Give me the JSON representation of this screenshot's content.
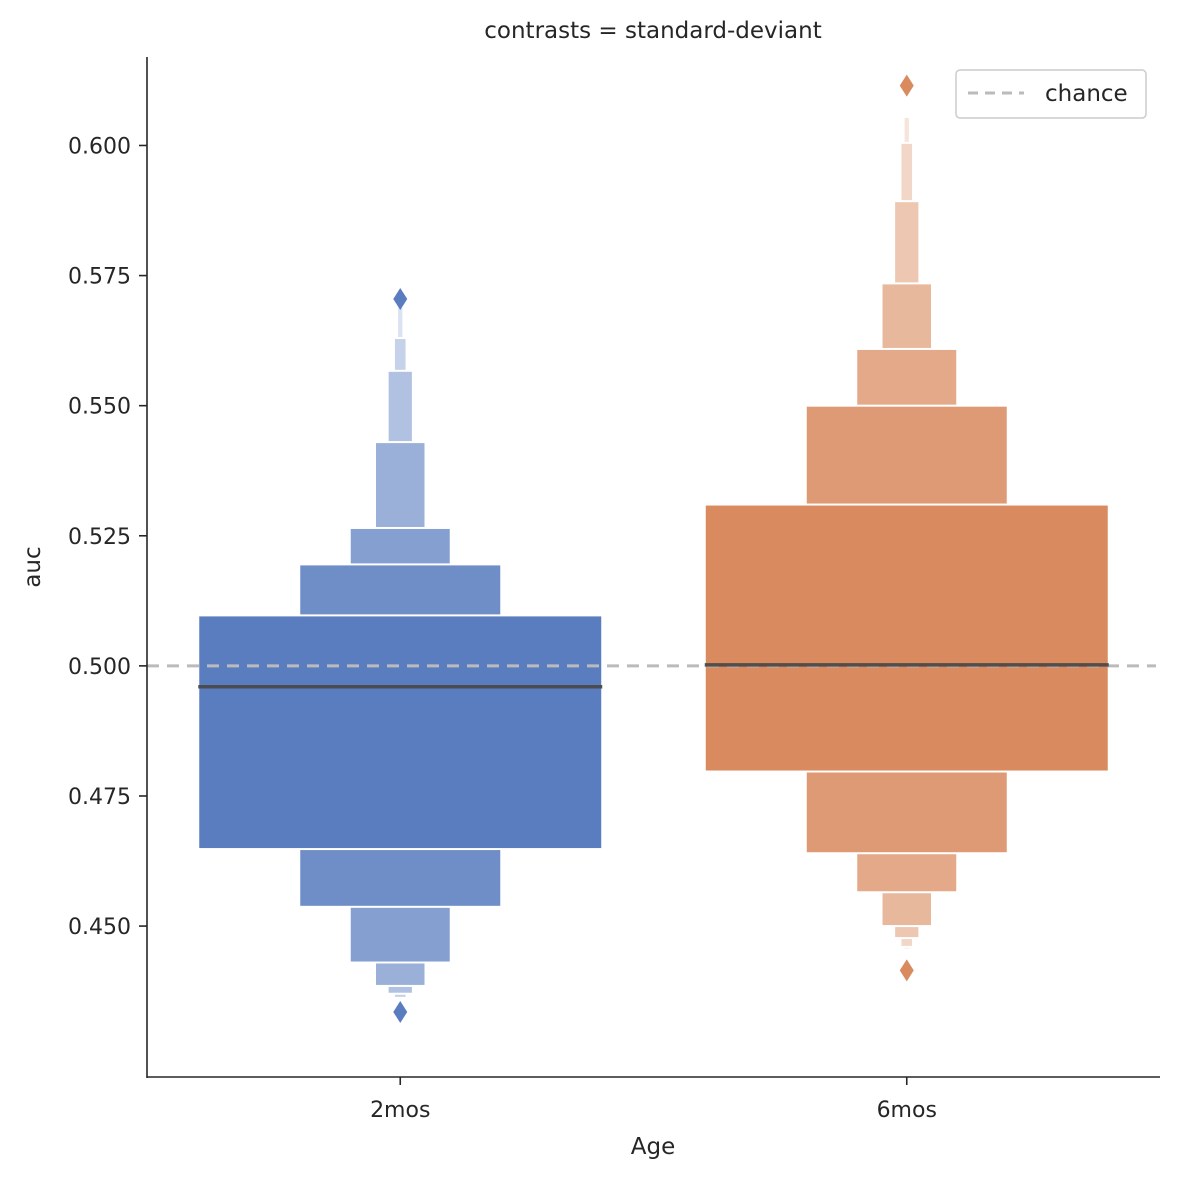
{
  "chart_data": {
    "type": "boxen",
    "title": "contrasts = standard-deviant",
    "xlabel": "Age",
    "ylabel": "auc",
    "categories": [
      "2mos",
      "6mos"
    ],
    "ylim": [
      0.421,
      0.617
    ],
    "yticks": [
      0.45,
      0.475,
      0.5,
      0.525,
      0.55,
      0.575,
      0.6
    ],
    "ytick_labels": [
      "0.450",
      "0.475",
      "0.500",
      "0.525",
      "0.550",
      "0.575",
      "0.600"
    ],
    "grid": false,
    "reference_line": {
      "y": 0.5,
      "label": "chance",
      "style": "dashed",
      "color": "#bbbbbb"
    },
    "legend": {
      "position": "top-right",
      "entries": [
        "chance"
      ]
    },
    "series": [
      {
        "category": "2mos",
        "color": "#5a7dc0",
        "median": 0.496,
        "boxes": [
          {
            "low": 0.4648,
            "high": 0.5097
          },
          {
            "low": 0.4537,
            "high": 0.5195
          },
          {
            "low": 0.443,
            "high": 0.5265
          },
          {
            "low": 0.4385,
            "high": 0.543
          },
          {
            "low": 0.437,
            "high": 0.5567
          },
          {
            "low": 0.4362,
            "high": 0.563
          },
          {
            "low": 0.4358,
            "high": 0.569
          }
        ],
        "outliers": [
          0.5705,
          0.4335
        ]
      },
      {
        "category": "6mos",
        "color": "#d98b5f",
        "median": 0.5002,
        "boxes": [
          {
            "low": 0.4797,
            "high": 0.531
          },
          {
            "low": 0.464,
            "high": 0.55
          },
          {
            "low": 0.4565,
            "high": 0.5609
          },
          {
            "low": 0.45,
            "high": 0.5735
          },
          {
            "low": 0.4477,
            "high": 0.5893
          },
          {
            "low": 0.446,
            "high": 0.6005
          },
          {
            "low": 0.4455,
            "high": 0.6055
          }
        ],
        "outliers": [
          0.6115,
          0.4415
        ]
      }
    ]
  }
}
